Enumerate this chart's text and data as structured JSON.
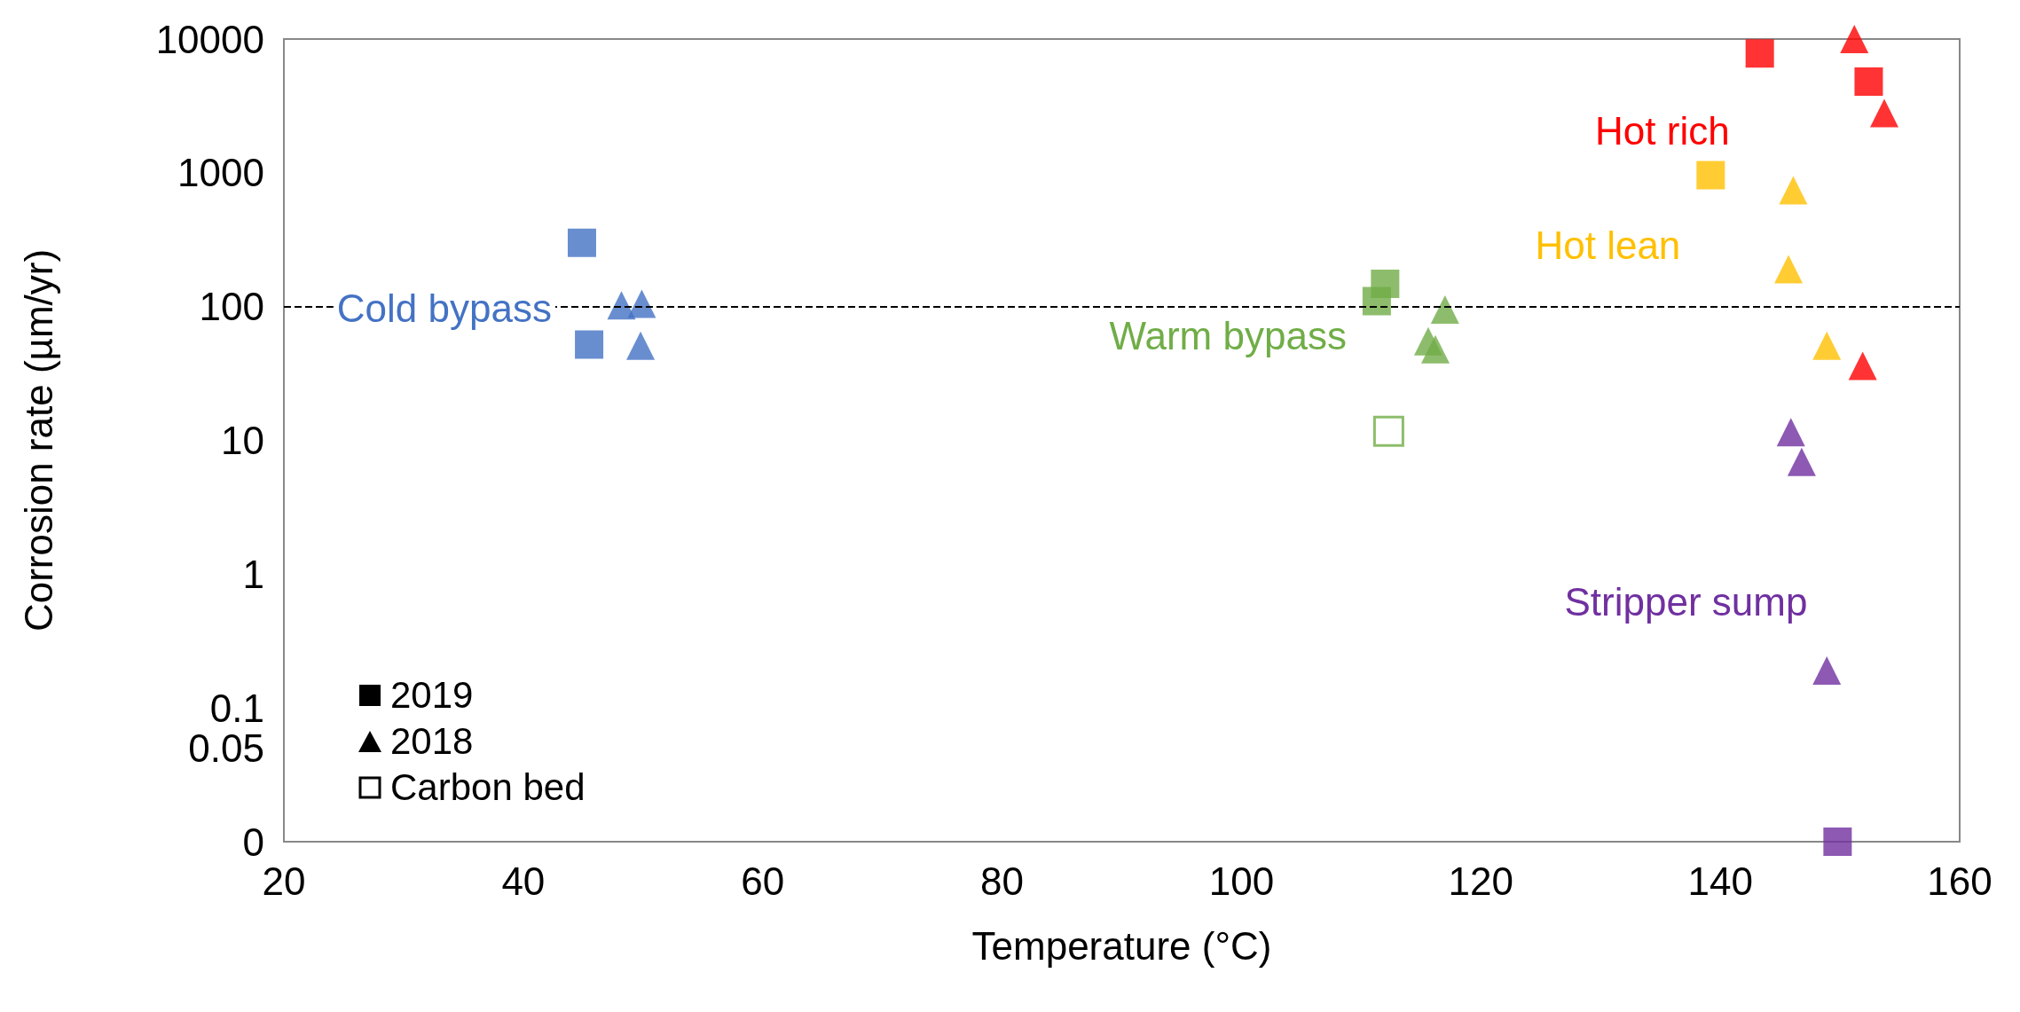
{
  "chart_data": {
    "type": "scatter",
    "xlabel": "Temperature (°C)",
    "ylabel": "Corrosion rate (µm/yr)",
    "log": "y",
    "xlim": [
      20,
      160
    ],
    "xticks": [
      20,
      40,
      60,
      80,
      100,
      120,
      140,
      160
    ],
    "ylim": [
      0.01,
      10000
    ],
    "yticks": [
      {
        "value": 0.01,
        "label": "0"
      },
      0.05,
      0.1,
      1,
      10,
      100,
      1000,
      10000
    ],
    "grid": false,
    "series": [
      {
        "name": "Cold bypass",
        "color": "#4472c4",
        "marker": "square",
        "x": [
          44.9,
          45.5
        ],
        "values": [
          300,
          52
        ]
      },
      {
        "color": "#4472c4",
        "marker": "triangle",
        "x": [
          48.2,
          49.9,
          49.8
        ],
        "values": [
          102,
          105,
          51
        ]
      },
      {
        "name": "Warm bypass",
        "color": "#70ad47",
        "marker": "square",
        "x": [
          112.0,
          111.3
        ],
        "values": [
          148,
          110
        ]
      },
      {
        "color": "#70ad47",
        "marker": "triangle",
        "x": [
          117.0,
          115.6,
          116.2
        ],
        "values": [
          95,
          55,
          48
        ]
      },
      {
        "color": "#70ad47",
        "marker": "square",
        "x": [
          112.3
        ],
        "values": [
          11.7
        ]
      },
      {
        "name": "Hot lean",
        "color": "#ffc000",
        "marker": "square",
        "x": [
          139.2
        ],
        "values": [
          960
        ]
      },
      {
        "color": "#ffc000",
        "marker": "triangle",
        "x": [
          146.1,
          145.7,
          148.9
        ],
        "values": [
          740,
          190,
          51
        ]
      },
      {
        "name": "Hot rich",
        "color": "#ff0000",
        "marker": "square",
        "x": [
          143.3,
          152.4
        ],
        "values": [
          7800,
          4800
        ]
      },
      {
        "color": "#ff0000",
        "marker": "triangle",
        "x": [
          151.2,
          153.7,
          151.9
        ],
        "values": [
          10000,
          2800,
          36
        ]
      },
      {
        "name": "Stripper sump",
        "color": "#7030a0",
        "marker": "square",
        "x": [
          149.8
        ],
        "values": [
          0.01
        ]
      },
      {
        "color": "#7030a0",
        "marker": "triangle",
        "x": [
          145.9,
          146.8,
          148.9
        ],
        "values": [
          11.5,
          6.9,
          0.19
        ]
      }
    ],
    "ref_lines": [
      {
        "axis": "y",
        "value": 100,
        "line_style": "dashed",
        "color": "#000000"
      }
    ],
    "annotations": [
      "2019",
      "2018",
      "Carbon bed"
    ]
  }
}
